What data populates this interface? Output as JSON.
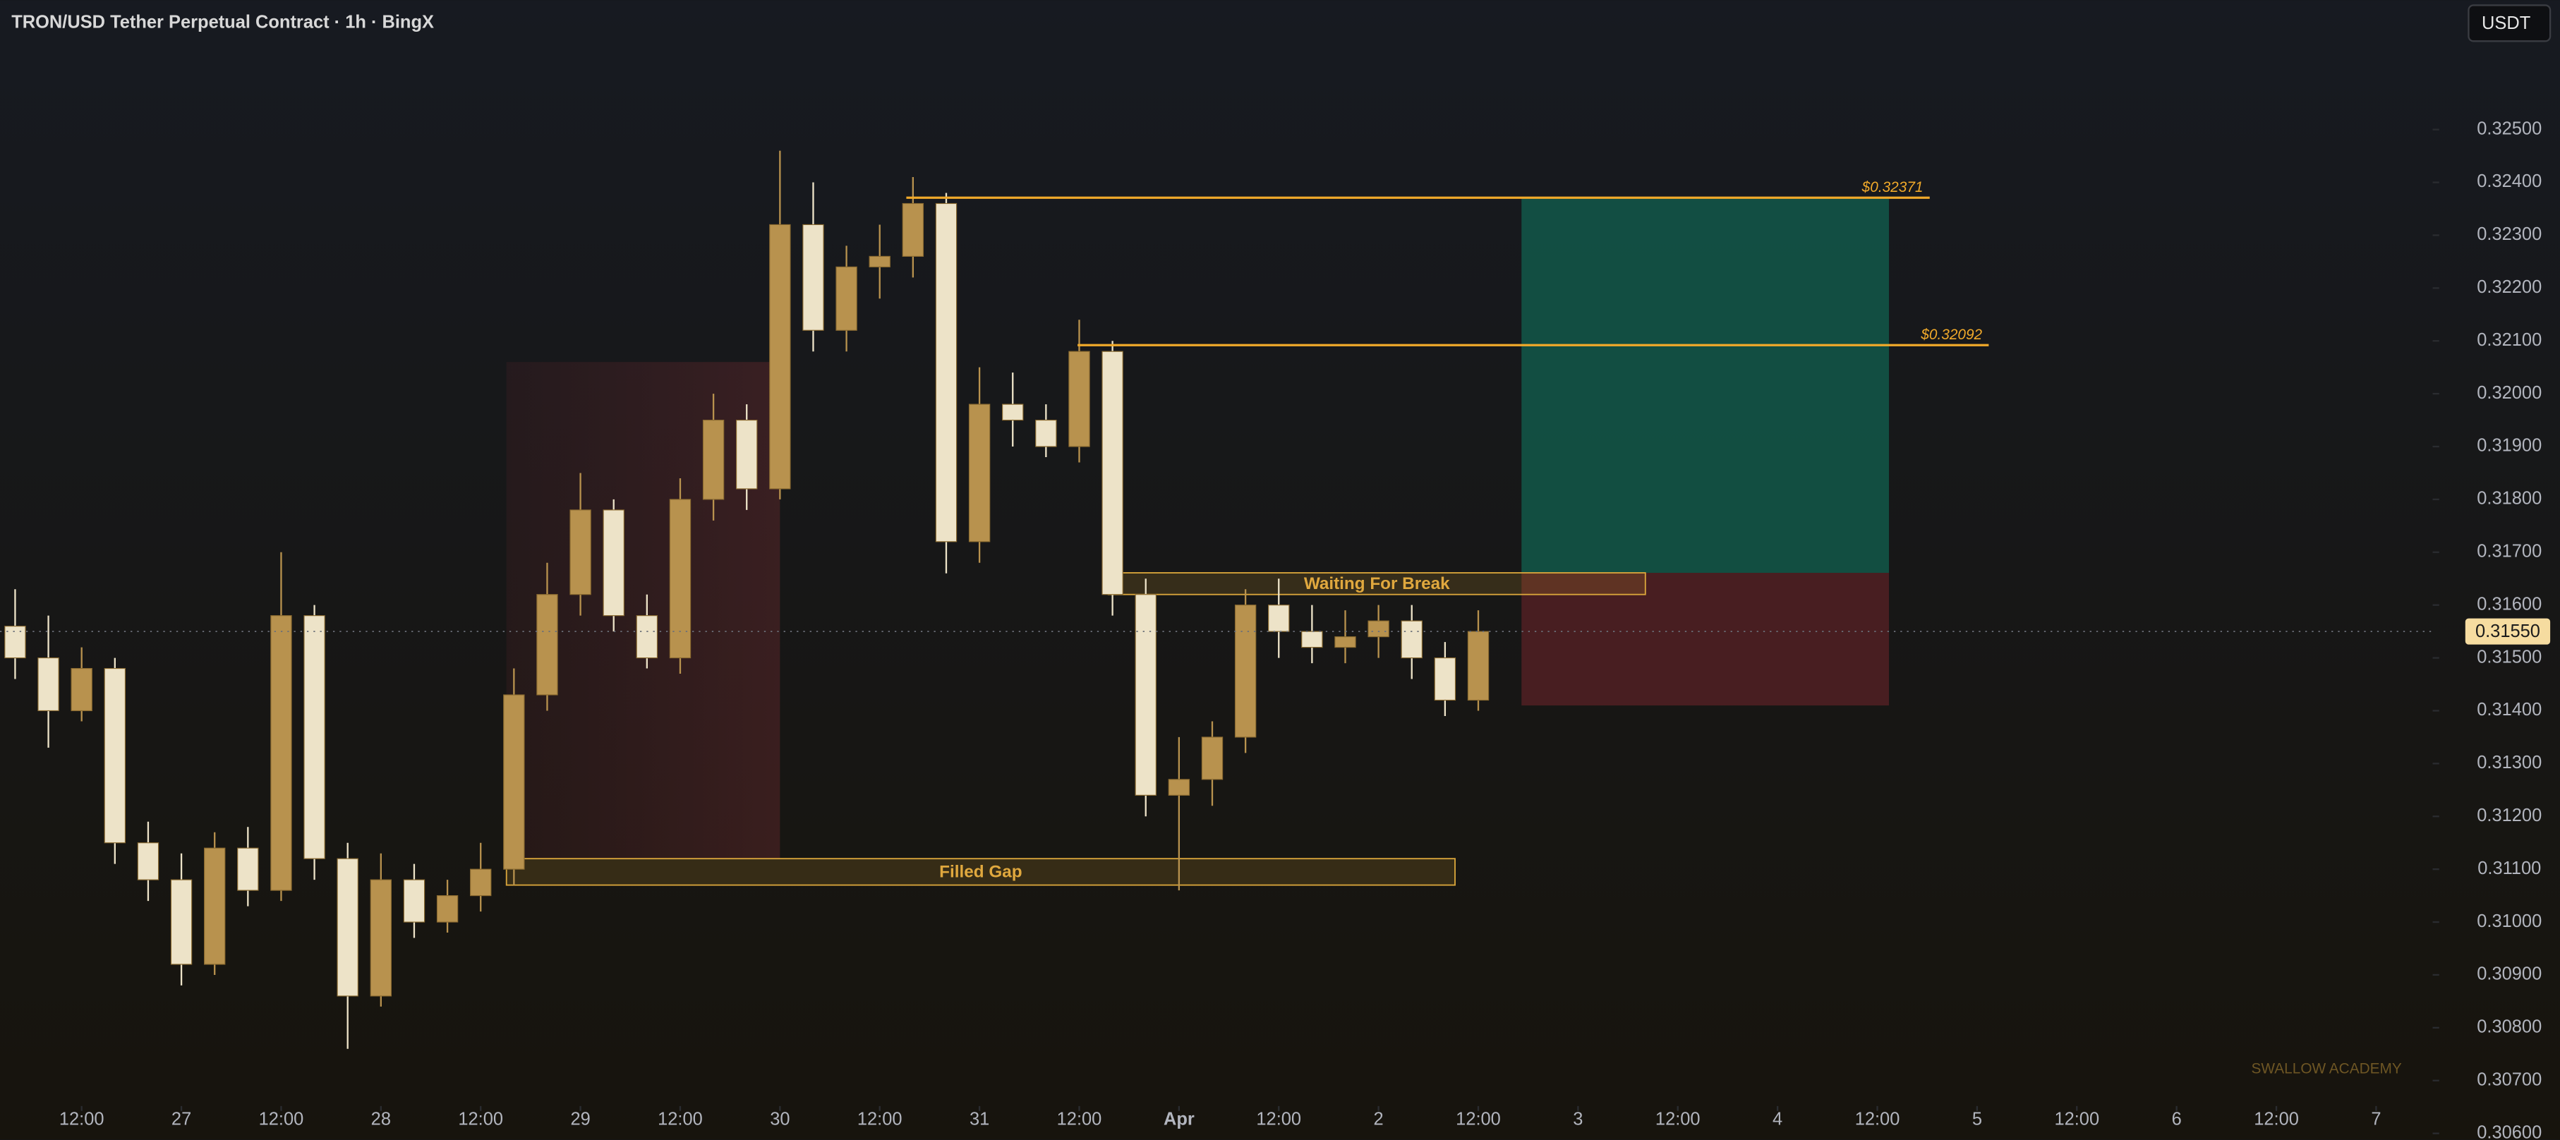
{
  "header": {
    "title": "TRON/USD Tether Perpetual Contract · 1h · BingX",
    "currency_button": "USDT",
    "watermark": "SWALLOW ACADEMY"
  },
  "chart_data": {
    "type": "candlestick",
    "x": [
      4,
      8,
      12,
      16,
      20,
      24,
      28,
      32,
      36,
      40,
      44,
      48,
      52,
      56,
      60,
      64,
      68,
      72,
      76,
      80,
      84,
      88,
      92,
      96,
      100,
      104,
      108,
      112,
      116,
      120,
      124,
      128,
      132,
      136,
      140,
      144,
      148,
      152,
      156,
      160,
      164,
      168,
      172,
      176,
      180
    ],
    "series": [
      {
        "name": "open",
        "values": [
          0.3156,
          0.315,
          0.314,
          0.3148,
          0.3115,
          0.3108,
          0.3092,
          0.3114,
          0.3106,
          0.3158,
          0.3112,
          0.3086,
          0.3108,
          0.31,
          0.3105,
          0.311,
          0.3143,
          0.3162,
          0.3178,
          0.3158,
          0.315,
          0.318,
          0.3195,
          0.3182,
          0.3232,
          0.3212,
          0.3224,
          0.3226,
          0.3236,
          0.3172,
          0.3198,
          0.3195,
          0.319,
          0.3208,
          0.3162,
          0.3124,
          0.3127,
          0.3135,
          0.316,
          0.3155,
          0.3152,
          0.3154,
          0.3157,
          0.315,
          0.3142
        ]
      },
      {
        "name": "high",
        "values": [
          0.3163,
          0.3158,
          0.3152,
          0.315,
          0.3119,
          0.3113,
          0.3117,
          0.3118,
          0.317,
          0.316,
          0.3115,
          0.3113,
          0.3111,
          0.3108,
          0.3115,
          0.3148,
          0.3168,
          0.3185,
          0.318,
          0.3162,
          0.3184,
          0.32,
          0.3198,
          0.3246,
          0.324,
          0.3228,
          0.3232,
          0.3241,
          0.3238,
          0.3205,
          0.3204,
          0.3198,
          0.3214,
          0.321,
          0.3165,
          0.3135,
          0.3138,
          0.3163,
          0.3165,
          0.316,
          0.3159,
          0.316,
          0.316,
          0.3153,
          0.3159
        ]
      },
      {
        "name": "low",
        "values": [
          0.3146,
          0.3133,
          0.3138,
          0.3111,
          0.3104,
          0.3088,
          0.309,
          0.3103,
          0.3104,
          0.3108,
          0.3076,
          0.3084,
          0.3097,
          0.3098,
          0.3102,
          0.3107,
          0.314,
          0.3158,
          0.3155,
          0.3148,
          0.3147,
          0.3176,
          0.3178,
          0.318,
          0.3208,
          0.3208,
          0.3218,
          0.3222,
          0.3166,
          0.3168,
          0.319,
          0.3188,
          0.3187,
          0.3158,
          0.312,
          0.3106,
          0.3122,
          0.3132,
          0.315,
          0.3149,
          0.3149,
          0.315,
          0.3146,
          0.3139,
          0.314
        ]
      },
      {
        "name": "close",
        "values": [
          0.315,
          0.314,
          0.3148,
          0.3115,
          0.3108,
          0.3092,
          0.3114,
          0.3106,
          0.3158,
          0.3112,
          0.3086,
          0.3108,
          0.31,
          0.3105,
          0.311,
          0.3143,
          0.3162,
          0.3178,
          0.3158,
          0.315,
          0.318,
          0.3195,
          0.3182,
          0.3232,
          0.3212,
          0.3224,
          0.3226,
          0.3236,
          0.3172,
          0.3198,
          0.3195,
          0.319,
          0.3208,
          0.3162,
          0.3124,
          0.3127,
          0.3135,
          0.316,
          0.3155,
          0.3152,
          0.3154,
          0.3157,
          0.315,
          0.3142,
          0.3155
        ]
      }
    ],
    "up_color": "#b8924e",
    "down_color": "#ede3c8",
    "xlim": [
      2.18,
      294.8
    ],
    "xticks": [
      {
        "value": 12,
        "label": "12:00"
      },
      {
        "value": 24,
        "label": "27"
      },
      {
        "value": 36,
        "label": "12:00"
      },
      {
        "value": 48,
        "label": "28"
      },
      {
        "value": 60,
        "label": "12:00"
      },
      {
        "value": 72,
        "label": "29"
      },
      {
        "value": 84,
        "label": "12:00"
      },
      {
        "value": 96,
        "label": "30"
      },
      {
        "value": 108,
        "label": "12:00"
      },
      {
        "value": 120,
        "label": "31"
      },
      {
        "value": 132,
        "label": "12:00"
      },
      {
        "value": 144,
        "label": "Apr"
      },
      {
        "value": 156,
        "label": "12:00"
      },
      {
        "value": 168,
        "label": "2"
      },
      {
        "value": 180,
        "label": "12:00"
      },
      {
        "value": 192,
        "label": "3"
      },
      {
        "value": 204,
        "label": "12:00"
      },
      {
        "value": 216,
        "label": "4"
      },
      {
        "value": 228,
        "label": "12:00"
      },
      {
        "value": 240,
        "label": "5"
      },
      {
        "value": 252,
        "label": "12:00"
      },
      {
        "value": 264,
        "label": "6"
      },
      {
        "value": 276,
        "label": "12:00"
      },
      {
        "value": 288,
        "label": "7"
      }
    ],
    "ylim": [
      0.3059,
      0.3265
    ],
    "yticks": [
      {
        "value": 0.306,
        "label": "0.30600"
      },
      {
        "value": 0.307,
        "label": "0.30700"
      },
      {
        "value": 0.308,
        "label": "0.30800"
      },
      {
        "value": 0.309,
        "label": "0.30900"
      },
      {
        "value": 0.31,
        "label": "0.31000"
      },
      {
        "value": 0.311,
        "label": "0.31100"
      },
      {
        "value": 0.312,
        "label": "0.31200"
      },
      {
        "value": 0.313,
        "label": "0.31300"
      },
      {
        "value": 0.314,
        "label": "0.31400"
      },
      {
        "value": 0.315,
        "label": "0.31500"
      },
      {
        "value": 0.316,
        "label": "0.31600"
      },
      {
        "value": 0.317,
        "label": "0.31700"
      },
      {
        "value": 0.318,
        "label": "0.31800"
      },
      {
        "value": 0.319,
        "label": "0.31900"
      },
      {
        "value": 0.32,
        "label": "0.32000"
      },
      {
        "value": 0.321,
        "label": "0.32100"
      },
      {
        "value": 0.322,
        "label": "0.32200"
      },
      {
        "value": 0.323,
        "label": "0.32300"
      },
      {
        "value": 0.324,
        "label": "0.32400"
      },
      {
        "value": 0.325,
        "label": "0.32500"
      }
    ],
    "current_price": {
      "value": 0.3155,
      "label": "0.31550"
    },
    "levels": [
      {
        "label": "$0.32371",
        "value": 0.32371,
        "x": [
          111.2,
          234.3
        ]
      },
      {
        "label": "$0.32092",
        "value": 0.32092,
        "x": [
          131.8,
          241.4
        ]
      }
    ],
    "zones": [
      {
        "label": "Waiting For Break",
        "y": [
          0.3162,
          0.31661
        ],
        "x": [
          135.5,
          200.1
        ]
      },
      {
        "label": "Filled Gap",
        "y": [
          0.3107,
          0.3112
        ],
        "x": [
          63.1,
          177.2
        ]
      }
    ],
    "position": {
      "entry": 0.31661,
      "target": 0.32371,
      "stop": 0.3141,
      "x": [
        185.2,
        229.4
      ]
    }
  }
}
